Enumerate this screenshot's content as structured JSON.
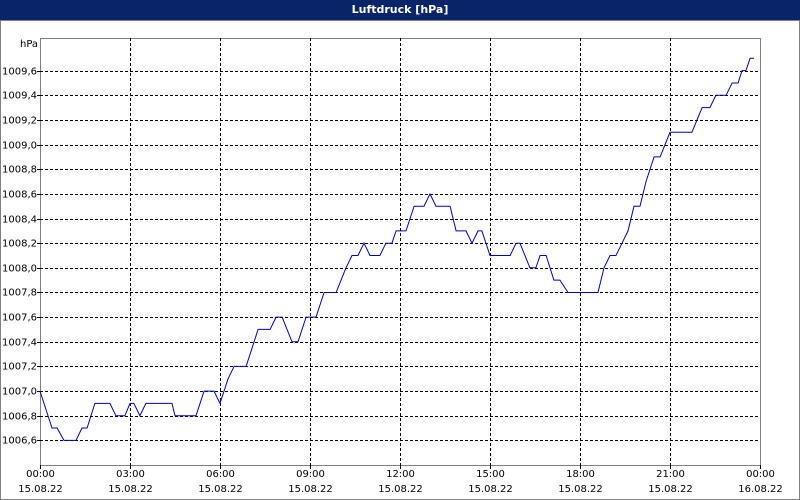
{
  "chart_data": {
    "type": "line",
    "title": "Luftdruck [hPa]",
    "y_label": "hPa",
    "x": [
      0,
      0.4,
      0.57,
      0.8,
      1.2,
      1.4,
      1.57,
      1.83,
      2.33,
      2.53,
      2.83,
      3,
      3.13,
      3.33,
      3.53,
      4.4,
      4.5,
      5.2,
      5.47,
      5.8,
      6,
      6.27,
      6.47,
      6.87,
      7.27,
      7.67,
      7.87,
      8.07,
      8.4,
      8.6,
      8.87,
      9.2,
      9.47,
      9.87,
      10.2,
      10.4,
      10.6,
      10.8,
      11,
      11.33,
      11.53,
      11.73,
      11.87,
      12.2,
      12.47,
      12.8,
      13,
      13.2,
      13.67,
      13.87,
      14.2,
      14.4,
      14.6,
      14.73,
      15,
      15.67,
      15.87,
      16,
      16.33,
      16.53,
      16.67,
      16.87,
      17.13,
      17.33,
      17.6,
      18.6,
      18.8,
      19,
      19.2,
      19.4,
      19.6,
      19.8,
      20,
      20.2,
      20.47,
      20.67,
      21,
      21.73,
      22.07,
      22.33,
      22.53,
      22.87,
      23.07,
      23.27,
      23.4,
      23.53,
      23.67,
      23.8
    ],
    "series": [
      {
        "name": "Luftdruck",
        "color": "#0000c0",
        "values": [
          1007.0,
          1006.7,
          1006.7,
          1006.6,
          1006.6,
          1006.7,
          1006.7,
          1006.9,
          1006.9,
          1006.8,
          1006.8,
          1006.9,
          1006.9,
          1006.8,
          1006.9,
          1006.9,
          1006.8,
          1006.8,
          1007.0,
          1007.0,
          1006.9,
          1007.1,
          1007.2,
          1007.2,
          1007.5,
          1007.5,
          1007.6,
          1007.6,
          1007.4,
          1007.4,
          1007.6,
          1007.6,
          1007.8,
          1007.8,
          1008.0,
          1008.1,
          1008.1,
          1008.2,
          1008.1,
          1008.1,
          1008.2,
          1008.2,
          1008.3,
          1008.3,
          1008.5,
          1008.5,
          1008.6,
          1008.5,
          1008.5,
          1008.3,
          1008.3,
          1008.2,
          1008.3,
          1008.3,
          1008.1,
          1008.1,
          1008.2,
          1008.2,
          1008.0,
          1008.0,
          1008.1,
          1008.1,
          1007.9,
          1007.9,
          1007.8,
          1007.8,
          1008.0,
          1008.1,
          1008.1,
          1008.2,
          1008.3,
          1008.5,
          1008.5,
          1008.7,
          1008.9,
          1008.9,
          1009.1,
          1009.1,
          1009.3,
          1009.3,
          1009.4,
          1009.4,
          1009.5,
          1009.5,
          1009.6,
          1009.6,
          1009.7,
          1009.7
        ]
      }
    ],
    "xlim": [
      0,
      24
    ],
    "xticks": [
      {
        "value": 0,
        "label": "00:00\n15.08.22"
      },
      {
        "value": 3,
        "label": "03:00\n15.08.22"
      },
      {
        "value": 6,
        "label": "06:00\n15.08.22"
      },
      {
        "value": 9,
        "label": "09:00\n15.08.22"
      },
      {
        "value": 12,
        "label": "12:00\n15.08.22"
      },
      {
        "value": 15,
        "label": "15:00\n15.08.22"
      },
      {
        "value": 18,
        "label": "18:00\n15.08.22"
      },
      {
        "value": 21,
        "label": "21:00\n15.08.22"
      },
      {
        "value": 24,
        "label": "00:00\n16.08.22"
      }
    ],
    "ylim": [
      1006.4,
      1009.8
    ],
    "yticks": [
      {
        "value": 1006.6,
        "label": "1006,6"
      },
      {
        "value": 1006.8,
        "label": "1006,8"
      },
      {
        "value": 1007.0,
        "label": "1007,0"
      },
      {
        "value": 1007.2,
        "label": "1007,2"
      },
      {
        "value": 1007.4,
        "label": "1007,4"
      },
      {
        "value": 1007.6,
        "label": "1007,6"
      },
      {
        "value": 1007.8,
        "label": "1007,8"
      },
      {
        "value": 1008.0,
        "label": "1008,0"
      },
      {
        "value": 1008.2,
        "label": "1008,2"
      },
      {
        "value": 1008.4,
        "label": "1008,4"
      },
      {
        "value": 1008.6,
        "label": "1008,6"
      },
      {
        "value": 1008.8,
        "label": "1008,8"
      },
      {
        "value": 1009.0,
        "label": "1009,0"
      },
      {
        "value": 1009.2,
        "label": "1009,2"
      },
      {
        "value": 1009.4,
        "label": "1009,4"
      },
      {
        "value": 1009.6,
        "label": "1009,6"
      }
    ],
    "grid": true
  }
}
